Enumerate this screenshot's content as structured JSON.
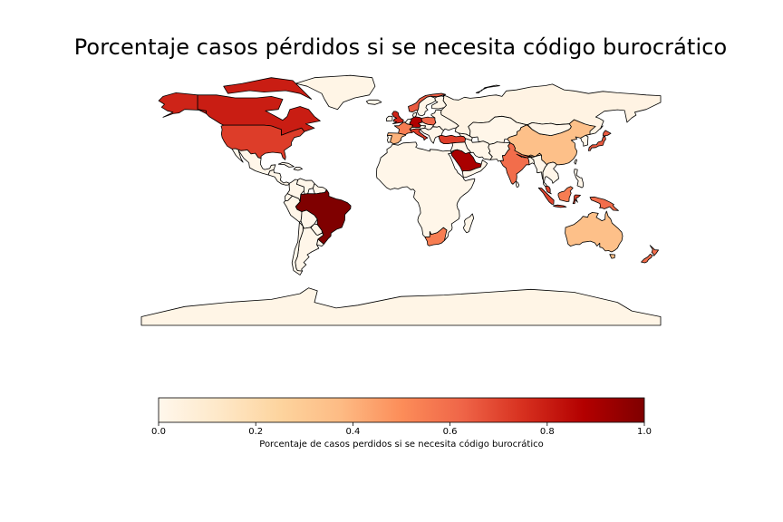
{
  "title": "Porcentaje casos pérdidos si se necesita código burocrático",
  "colorbar": {
    "label": "Porcentaje de casos perdidos si se necesita código burocrático",
    "ticks": [
      "0.0",
      "0.2",
      "0.4",
      "0.6",
      "0.8",
      "1.0"
    ],
    "range": [
      0.0,
      1.0
    ],
    "colormap": "OrRd",
    "stops": [
      "#fff7ec",
      "#fee8c8",
      "#fdd49e",
      "#fdbb84",
      "#fc8d59",
      "#ef6548",
      "#d7301f",
      "#b30000",
      "#7f0000"
    ]
  },
  "chart_data": {
    "type": "choropleth",
    "title": "Porcentaje casos pérdidos si se necesita código burocrático",
    "colorbar_label": "Porcentaje de casos perdidos si se necesita código burocrático",
    "value_range": [
      0.0,
      1.0
    ],
    "regions": [
      {
        "name": "Brazil",
        "value": 1.0
      },
      {
        "name": "Saudi Arabia",
        "value": 0.9
      },
      {
        "name": "Germany",
        "value": 0.88
      },
      {
        "name": "Canada",
        "value": 0.8
      },
      {
        "name": "Alaska",
        "value": 0.78
      },
      {
        "name": "United States",
        "value": 0.72
      },
      {
        "name": "United Kingdom",
        "value": 0.78
      },
      {
        "name": "Italy",
        "value": 0.72
      },
      {
        "name": "Turkey",
        "value": 0.72
      },
      {
        "name": "Norway",
        "value": 0.65
      },
      {
        "name": "Japan",
        "value": 0.65
      },
      {
        "name": "Indonesia",
        "value": 0.7
      },
      {
        "name": "France",
        "value": 0.55
      },
      {
        "name": "Poland",
        "value": 0.62
      },
      {
        "name": "India",
        "value": 0.6
      },
      {
        "name": "South Africa",
        "value": 0.55
      },
      {
        "name": "New Zealand",
        "value": 0.6
      },
      {
        "name": "Spain",
        "value": 0.4
      },
      {
        "name": "China",
        "value": 0.35
      },
      {
        "name": "Australia",
        "value": 0.35
      },
      {
        "name": "Russia",
        "value": 0.03
      },
      {
        "name": "Africa (rest)",
        "value": 0.02
      },
      {
        "name": "South America (rest)",
        "value": 0.02
      },
      {
        "name": "Greenland",
        "value": 0.02
      },
      {
        "name": "Antarctica",
        "value": 0.02
      }
    ]
  }
}
